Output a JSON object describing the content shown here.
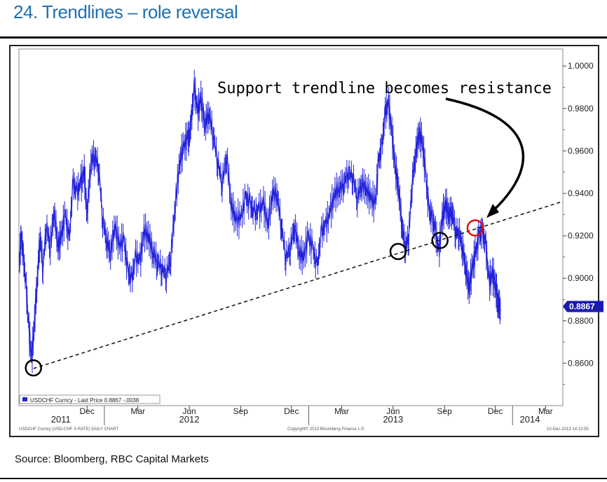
{
  "slide": {
    "title": "24. Trendlines – role reversal",
    "source": "Source: Bloomberg, RBC Capital Markets"
  },
  "colors": {
    "title": "#1f6fb2",
    "series": "#2222dd",
    "highlight_circle": "#e01010",
    "last_price_box": "#1a1ab0"
  },
  "chart_data": {
    "type": "line",
    "title": "",
    "ylabel": "",
    "xlabel": "",
    "ylim": [
      0.84,
      1.008
    ],
    "xlim": [
      "2011-08-01",
      "2014-04-01"
    ],
    "y_ticks": [
      "1.0000",
      "0.9800",
      "0.9600",
      "0.9400",
      "0.9200",
      "0.9000",
      "0.8800",
      "0.8600"
    ],
    "x_ticks": [
      {
        "label": "Dec",
        "date": "2011-12-01"
      },
      {
        "label": "Mar",
        "date": "2012-03-01"
      },
      {
        "label": "Jun",
        "date": "2012-06-01"
      },
      {
        "label": "Sep",
        "date": "2012-09-01"
      },
      {
        "label": "Dec",
        "date": "2012-12-01"
      },
      {
        "label": "Mar",
        "date": "2013-03-01"
      },
      {
        "label": "Jun",
        "date": "2013-06-01"
      },
      {
        "label": "Sep",
        "date": "2013-09-01"
      },
      {
        "label": "Dec",
        "date": "2013-12-01"
      },
      {
        "label": "Mar",
        "date": "2014-03-01"
      }
    ],
    "year_labels": [
      {
        "label": "2011",
        "date": "2011-10-15"
      },
      {
        "label": "2012",
        "date": "2012-06-01"
      },
      {
        "label": "2013",
        "date": "2013-06-01"
      },
      {
        "label": "2014",
        "date": "2014-02-01"
      }
    ],
    "series": [
      {
        "name": "USDCHF Curncy",
        "x": [
          "2011-08-01",
          "2011-08-05",
          "2011-08-09",
          "2011-08-14",
          "2011-08-19",
          "2011-08-24",
          "2011-08-29",
          "2011-09-03",
          "2011-09-08",
          "2011-09-13",
          "2011-09-19",
          "2011-09-26",
          "2011-10-03",
          "2011-10-10",
          "2011-10-16",
          "2011-10-23",
          "2011-10-30",
          "2011-11-06",
          "2011-11-13",
          "2011-11-20",
          "2011-11-26",
          "2011-12-01",
          "2011-12-08",
          "2011-12-15",
          "2011-12-22",
          "2011-12-29",
          "2012-01-05",
          "2012-01-12",
          "2012-01-20",
          "2012-01-28",
          "2012-02-05",
          "2012-02-12",
          "2012-02-19",
          "2012-02-26",
          "2012-03-05",
          "2012-03-12",
          "2012-03-20",
          "2012-03-28",
          "2012-04-05",
          "2012-04-13",
          "2012-04-21",
          "2012-04-29",
          "2012-05-07",
          "2012-05-15",
          "2012-05-22",
          "2012-05-29",
          "2012-06-01",
          "2012-06-05",
          "2012-06-10",
          "2012-06-16",
          "2012-06-22",
          "2012-06-29",
          "2012-07-06",
          "2012-07-14",
          "2012-07-22",
          "2012-07-30",
          "2012-08-07",
          "2012-08-15",
          "2012-08-23",
          "2012-09-01",
          "2012-09-10",
          "2012-09-18",
          "2012-09-26",
          "2012-10-04",
          "2012-10-12",
          "2012-10-20",
          "2012-10-28",
          "2012-11-05",
          "2012-11-13",
          "2012-11-21",
          "2012-11-29",
          "2012-12-07",
          "2012-12-15",
          "2012-12-23",
          "2012-12-31",
          "2013-01-08",
          "2013-01-16",
          "2013-01-24",
          "2013-02-01",
          "2013-02-09",
          "2013-02-17",
          "2013-02-25",
          "2013-03-05",
          "2013-03-13",
          "2013-03-21",
          "2013-03-29",
          "2013-04-06",
          "2013-04-14",
          "2013-04-22",
          "2013-04-30",
          "2013-05-06",
          "2013-05-12",
          "2013-05-18",
          "2013-05-24",
          "2013-05-30",
          "2013-06-05",
          "2013-06-11",
          "2013-06-17",
          "2013-06-23",
          "2013-06-29",
          "2013-07-05",
          "2013-07-11",
          "2013-07-17",
          "2013-07-23",
          "2013-07-29",
          "2013-08-04",
          "2013-08-10",
          "2013-08-16",
          "2013-08-22",
          "2013-08-28",
          "2013-09-03",
          "2013-09-09",
          "2013-09-15",
          "2013-09-21",
          "2013-09-27",
          "2013-10-03",
          "2013-10-09",
          "2013-10-15",
          "2013-10-21",
          "2013-10-27",
          "2013-11-02",
          "2013-11-08",
          "2013-11-14",
          "2013-11-20",
          "2013-11-26",
          "2013-12-02",
          "2013-12-06",
          "2013-12-10"
        ],
        "values": [
          0.905,
          0.92,
          0.91,
          0.895,
          0.875,
          0.862,
          0.88,
          0.9,
          0.92,
          0.905,
          0.925,
          0.915,
          0.932,
          0.915,
          0.92,
          0.93,
          0.918,
          0.945,
          0.94,
          0.945,
          0.95,
          0.93,
          0.955,
          0.958,
          0.952,
          0.928,
          0.918,
          0.912,
          0.925,
          0.915,
          0.918,
          0.903,
          0.899,
          0.91,
          0.908,
          0.922,
          0.92,
          0.912,
          0.908,
          0.905,
          0.902,
          0.91,
          0.935,
          0.955,
          0.962,
          0.966,
          0.966,
          0.975,
          0.99,
          0.978,
          0.985,
          0.972,
          0.978,
          0.968,
          0.955,
          0.945,
          0.958,
          0.935,
          0.928,
          0.928,
          0.938,
          0.935,
          0.93,
          0.932,
          0.935,
          0.925,
          0.94,
          0.94,
          0.925,
          0.91,
          0.915,
          0.925,
          0.912,
          0.91,
          0.92,
          0.914,
          0.905,
          0.922,
          0.925,
          0.932,
          0.94,
          0.942,
          0.945,
          0.95,
          0.948,
          0.938,
          0.945,
          0.942,
          0.938,
          0.935,
          0.955,
          0.962,
          0.978,
          0.982,
          0.968,
          0.952,
          0.942,
          0.925,
          0.915,
          0.92,
          0.945,
          0.958,
          0.968,
          0.965,
          0.95,
          0.932,
          0.928,
          0.922,
          0.912,
          0.928,
          0.935,
          0.93,
          0.932,
          0.922,
          0.922,
          0.915,
          0.905,
          0.895,
          0.905,
          0.912,
          0.92,
          0.922,
          0.915,
          0.898,
          0.902,
          0.896,
          0.888,
          0.887
        ]
      }
    ],
    "trendline": {
      "style": "dashed",
      "points": [
        {
          "x": "2011-08-27",
          "y": 0.8575
        },
        {
          "x": "2014-04-01",
          "y": 0.9362
        }
      ]
    },
    "markers": [
      {
        "label": "support-low",
        "x": "2011-08-27",
        "y": 0.8578,
        "color": "#000000"
      },
      {
        "label": "support-touch-jun",
        "x": "2013-06-10",
        "y": 0.9126,
        "color": "#000000"
      },
      {
        "label": "support-break-aug",
        "x": "2013-08-24",
        "y": 0.9178,
        "color": "#000000"
      },
      {
        "label": "resistance-retest",
        "x": "2013-10-26",
        "y": 0.9237,
        "color": "#e01010"
      }
    ],
    "annotation": {
      "text": "Support trendline becomes resistance"
    },
    "last_price": {
      "label": "0.8867",
      "value": 0.8867
    },
    "legend": {
      "text": "USDCHF Curncy - Last Price 0.8867 -.0038",
      "placement": "bottom-left"
    },
    "footer_left": "USDCHF Curncy (USD-CHF X-RATE) DAILY CHART",
    "footer_center": "Copyright© 2013 Bloomberg Finance L.P.",
    "footer_right": "10-Dec-2013 14:13:55",
    "grid": false
  }
}
